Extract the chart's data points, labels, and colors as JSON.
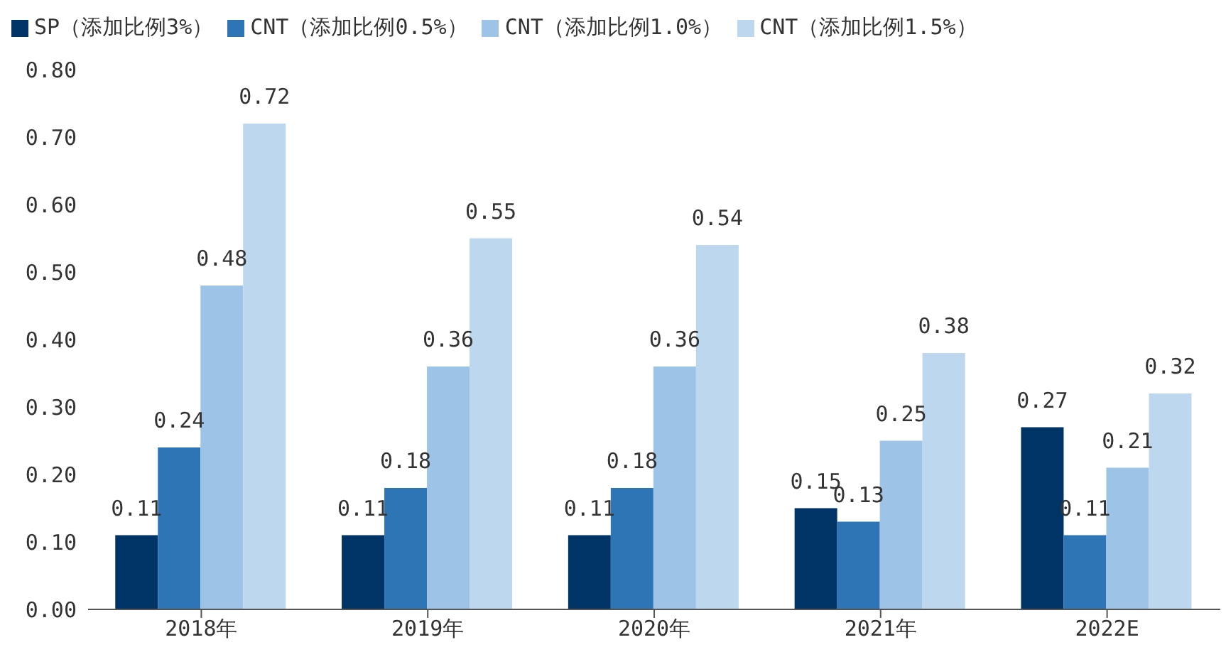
{
  "chart_data": {
    "type": "bar",
    "categories": [
      "2018年",
      "2019年",
      "2020年",
      "2021年",
      "2022E"
    ],
    "series": [
      {
        "name": "SP（添加比例3%）",
        "color": "#003466",
        "values": [
          0.11,
          0.11,
          0.11,
          0.15,
          0.27
        ]
      },
      {
        "name": "CNT（添加比例0.5%）",
        "color": "#2e75b6",
        "values": [
          0.24,
          0.18,
          0.18,
          0.13,
          0.11
        ]
      },
      {
        "name": "CNT（添加比例1.0%）",
        "color": "#9dc3e6",
        "values": [
          0.48,
          0.36,
          0.36,
          0.25,
          0.21
        ]
      },
      {
        "name": "CNT（添加比例1.5%）",
        "color": "#bdd7ee",
        "values": [
          0.72,
          0.55,
          0.54,
          0.38,
          0.32
        ]
      }
    ],
    "ylim": [
      0,
      0.8
    ],
    "yticks": [
      {
        "value": 0,
        "label": "0.00"
      },
      {
        "value": 0.1,
        "label": "0.10"
      },
      {
        "value": 0.2,
        "label": "0.20"
      },
      {
        "value": 0.3,
        "label": "0.30"
      },
      {
        "value": 0.4,
        "label": "0.40"
      },
      {
        "value": 0.5,
        "label": "0.50"
      },
      {
        "value": 0.6,
        "label": "0.60"
      },
      {
        "value": 0.7,
        "label": "0.70"
      },
      {
        "value": 0.8,
        "label": "0.80"
      }
    ],
    "data_labels": true,
    "legend": "top",
    "grid": false
  }
}
